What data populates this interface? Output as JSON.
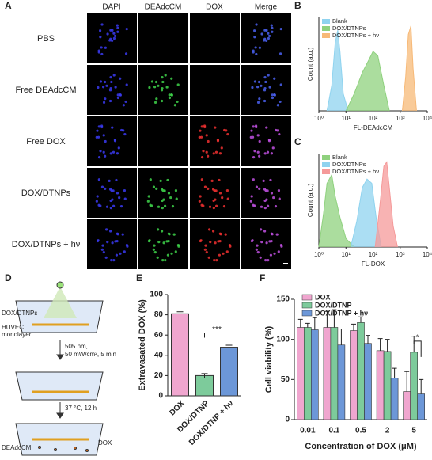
{
  "panel_a": {
    "label": "A",
    "columns": [
      "DAPI",
      "DEAdcCM",
      "DOX",
      "Merge"
    ],
    "rows": [
      "PBS",
      "Free DEAdcCM",
      "Free DOX",
      "DOX/DTNPs",
      "DOX/DTNPs + hν"
    ]
  },
  "panel_d": {
    "label": "D",
    "nanoparticles": "DOX/DTNPs",
    "cells": [
      "HUVEC",
      "monolayer"
    ],
    "step1": [
      "505 nm,",
      "50 mW/cm², 5 min"
    ],
    "step2": "37 °C, 12 h",
    "dye": "DEAdcCM",
    "drug": "DOX"
  },
  "chart_data": [
    {
      "type": "area",
      "panel": "B",
      "x_label": "FL-DEAdcCM",
      "y_label": "Count (a.u.)",
      "log_x": true,
      "xlim": [
        1,
        10000
      ],
      "ylim": [
        0,
        110
      ],
      "xticks": [
        {
          "value": 1,
          "label": "10⁰"
        },
        {
          "value": 10,
          "label": "10¹"
        },
        {
          "value": 100,
          "label": "10²"
        },
        {
          "value": 1000,
          "label": "10³"
        },
        {
          "value": 10000,
          "label": "10⁴"
        }
      ],
      "series": [
        {
          "name": "Blank",
          "color": "#8fd3ef",
          "x": [
            2,
            3,
            4,
            5,
            6,
            8,
            12
          ],
          "values": [
            0,
            30,
            80,
            95,
            70,
            20,
            0
          ]
        },
        {
          "name": "DOX/DTNPs",
          "color": "#8fd17e",
          "x": [
            10,
            20,
            40,
            70,
            100,
            150,
            250,
            400
          ],
          "values": [
            0,
            20,
            45,
            60,
            70,
            65,
            30,
            0
          ]
        },
        {
          "name": "DOX/DTNPs + hν",
          "color": "#f7b977",
          "x": [
            1200,
            1600,
            2000,
            2500,
            3000,
            4000
          ],
          "values": [
            0,
            40,
            90,
            100,
            50,
            0
          ]
        }
      ]
    },
    {
      "type": "area",
      "panel": "C",
      "x_label": "FL-DOX",
      "y_label": "Count (a.u.)",
      "log_x": true,
      "xlim": [
        1,
        10000
      ],
      "ylim": [
        0,
        110
      ],
      "xticks": [
        {
          "value": 1,
          "label": "10⁰"
        },
        {
          "value": 10,
          "label": "10¹"
        },
        {
          "value": 100,
          "label": "10²"
        },
        {
          "value": 1000,
          "label": "10³"
        },
        {
          "value": 10000,
          "label": "10⁴"
        }
      ],
      "series": [
        {
          "name": "Blank",
          "color": "#8fd17e",
          "x": [
            1,
            1.5,
            2,
            3,
            4,
            6,
            10,
            20
          ],
          "values": [
            0,
            40,
            75,
            85,
            60,
            35,
            10,
            0
          ]
        },
        {
          "name": "DOX/DTNPs",
          "color": "#8fd3ef",
          "x": [
            15,
            25,
            40,
            60,
            90,
            130,
            200
          ],
          "values": [
            0,
            30,
            70,
            80,
            75,
            35,
            0
          ]
        },
        {
          "name": "DOX/DTNPs + hν",
          "color": "#f59a9a",
          "x": [
            120,
            180,
            250,
            320,
            400,
            550,
            800
          ],
          "values": [
            0,
            50,
            95,
            100,
            70,
            25,
            0
          ]
        }
      ]
    },
    {
      "type": "bar",
      "panel": "E",
      "y_label": "Extravasated DOX (%)",
      "categories": [
        "DOX",
        "DOX/DTNP",
        "DOX/DTNP + hν"
      ],
      "values": [
        81,
        20,
        48
      ],
      "errors": [
        2,
        2,
        2
      ],
      "colors": [
        "#f0a6cf",
        "#7dcb9b",
        "#6c97d8"
      ],
      "ylim": [
        0,
        100
      ],
      "yticks": [
        0,
        20,
        40,
        60,
        80,
        100
      ],
      "annotations": [
        "***"
      ]
    },
    {
      "type": "grouped_bar",
      "panel": "F",
      "y_label": "Cell viability (%)",
      "x_label": "Concentration of DOX (μM)",
      "categories": [
        "0.01",
        "0.1",
        "0.5",
        "2",
        "5"
      ],
      "ylim": [
        0,
        150
      ],
      "yticks": [
        0,
        50,
        100,
        150
      ],
      "annotations": [
        "*"
      ],
      "series": [
        {
          "name": "DOX",
          "color": "#f0a6cf",
          "values": [
            115,
            115,
            111,
            86,
            35
          ],
          "errors": [
            10,
            20,
            8,
            15,
            25
          ]
        },
        {
          "name": "DOX/DTNP",
          "color": "#7dcb9b",
          "values": [
            115,
            115,
            121,
            85,
            84
          ],
          "errors": [
            5,
            22,
            7,
            15,
            20
          ]
        },
        {
          "name": "DOX/DTNP + hν",
          "color": "#6c97d8",
          "values": [
            112,
            93,
            95,
            52,
            32
          ],
          "errors": [
            15,
            20,
            10,
            12,
            18
          ]
        }
      ]
    }
  ]
}
